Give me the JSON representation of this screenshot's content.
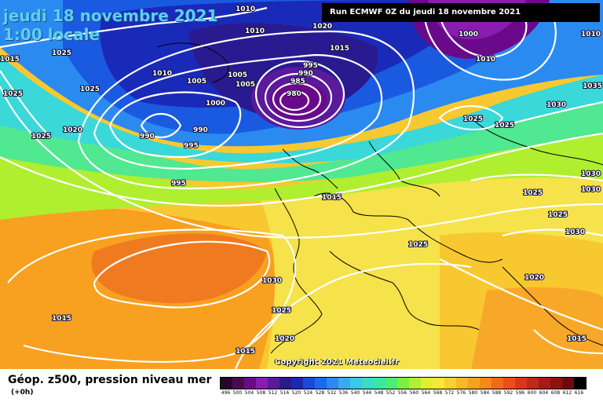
{
  "header": {
    "date": "jeudi 18 novembre 2021",
    "time": "1:00 locale",
    "run_info": "Run ECMWF 0Z du jeudi 18 novembre 2021"
  },
  "copyright": "Copyright 2021 Meteociel.fr",
  "legend": {
    "title": "Géop. z500, pression niveau mer",
    "subtitle": "(+0h)",
    "scale_values": [
      "496",
      "500",
      "504",
      "508",
      "512",
      "516",
      "520",
      "524",
      "528",
      "532",
      "536",
      "540",
      "544",
      "548",
      "552",
      "556",
      "560",
      "564",
      "568",
      "572",
      "576",
      "580",
      "584",
      "588",
      "592",
      "596",
      "600",
      "604",
      "608",
      "612",
      "616"
    ],
    "scale_colors": [
      "#2a0530",
      "#4a0a52",
      "#6a0a8a",
      "#8a1cb0",
      "#5a1a9a",
      "#2a1a8a",
      "#1a2ab0",
      "#1a4ad8",
      "#1a6aee",
      "#2a8af0",
      "#3aaaf0",
      "#3ac8e8",
      "#3adcc8",
      "#3ae8a0",
      "#4af070",
      "#7af040",
      "#b0f030",
      "#e0f030",
      "#f8e838",
      "#f8d030",
      "#f8b828",
      "#f8a020",
      "#f88818",
      "#f06a18",
      "#e85018",
      "#d83818",
      "#c02818",
      "#a81a14",
      "#901010",
      "#700a0a",
      "#000000"
    ]
  },
  "isobars": [
    "1010",
    "1010",
    "1020",
    "1000",
    "1010",
    "1015",
    "1010",
    "1015",
    "1025",
    "1010",
    "1005",
    "1005",
    "1005",
    "995",
    "990",
    "985",
    "980",
    "1015",
    "1025",
    "1000",
    "990",
    "1025",
    "1020",
    "1025",
    "1030",
    "1035",
    "1025",
    "995",
    "995",
    "990",
    "1030",
    "1025",
    "1025",
    "1030",
    "1015",
    "1030",
    "1025",
    "1020",
    "1030",
    "1025",
    "1015",
    "1020",
    "1015",
    "1015"
  ]
}
